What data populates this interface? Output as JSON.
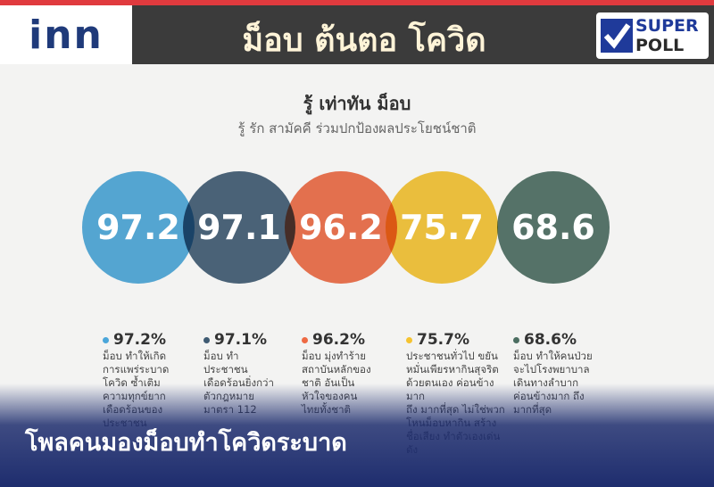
{
  "header": {
    "logo": "inn",
    "title": "ม็อบ ต้นตอ โควิด",
    "badge": [
      "SUPER",
      "POLL"
    ]
  },
  "infographic": {
    "title": "รู้ เท่าทัน ม็อบ",
    "subtitle": "รู้ รัก สามัคคี ร่วมปกป้องผลประโยชน์ชาติ",
    "items": [
      {
        "value": 97.2,
        "label": "97.2%",
        "color": "#4aa6da",
        "text": [
          "ม็อบ ทำให้เกิด",
          "การแพร่ระบาด",
          "โควิด ซ้ำเติม",
          "ความทุกข์ยาก",
          "เดือดร้อนของ",
          "ประชาชน"
        ]
      },
      {
        "value": 97.1,
        "label": "97.1%",
        "color": "#3e5a72",
        "text": [
          "ม็อบ ทำ",
          "ประชาชน",
          "เดือดร้อนยิ่งกว่า",
          "ตัวกฎหมาย",
          "มาตรา 112"
        ]
      },
      {
        "value": 96.2,
        "label": "96.2%",
        "color": "#ee6943",
        "text": [
          "ม็อบ มุ่งทำร้าย",
          "สถาบันหลักของ",
          "ชาติ อันเป็น",
          "หัวใจของคน",
          "ไทยทั้งชาติ"
        ]
      },
      {
        "value": 75.7,
        "label": "75.7%",
        "color": "#f5c330",
        "text": [
          "ประชาชนทั่วไป ขยัน",
          "หมั่นเพียรหากินสุจริต",
          "ด้วยตนเอง ค่อนข้างมาก",
          "ถึง มากที่สุด ไม่ใช่พวก",
          "โหนม็อบหากิน สร้าง",
          "ชื่อเสียง ทำตัวเองเด่นดัง"
        ]
      },
      {
        "value": 68.6,
        "label": "68.6%",
        "color": "#4b6d61",
        "text": [
          "ม็อบ ทำให้คนป่วย",
          "จะไปโรงพยาบาล",
          "เดินทางลำบาก",
          "ค่อนข้างมาก ถึง",
          "มากที่สุด"
        ]
      }
    ]
  },
  "caption": "โพลคนมองม็อบทำโควิดระบาด"
}
